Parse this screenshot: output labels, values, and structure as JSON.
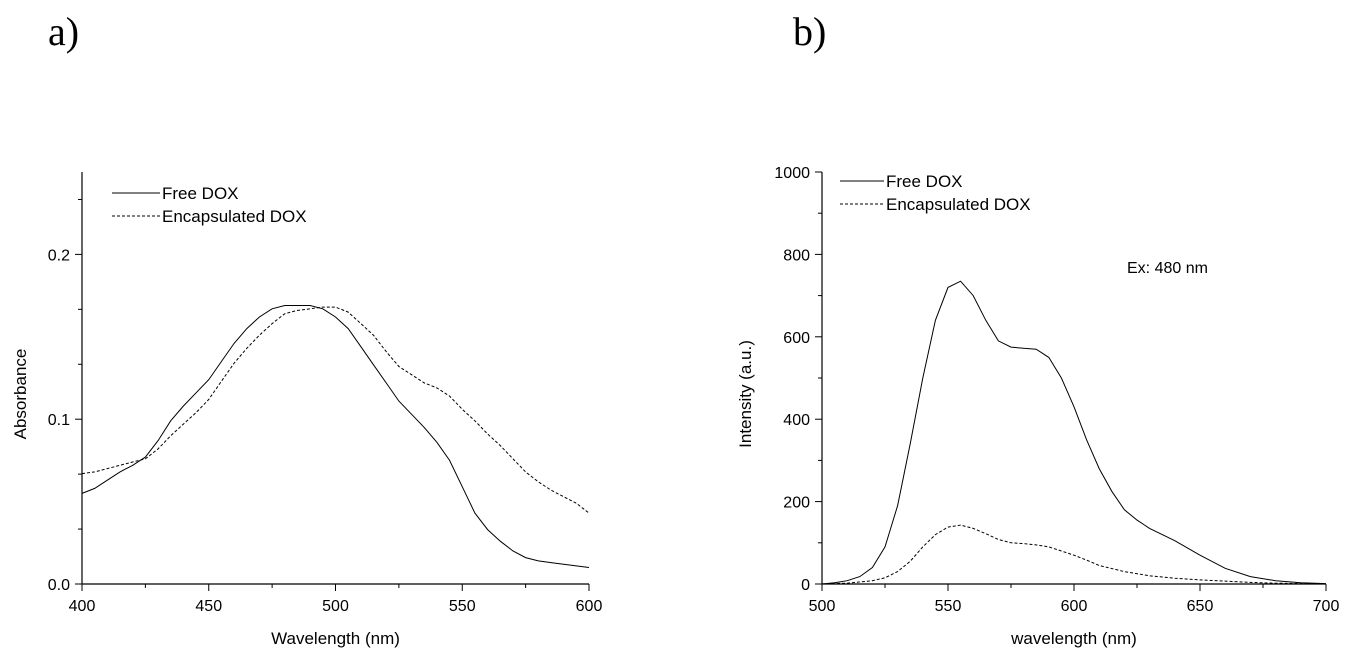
{
  "panels": {
    "a_label": "a)",
    "b_label": "b)"
  },
  "chart_data": [
    {
      "type": "line",
      "panel": "a)",
      "xlabel": "Wavelength (nm)",
      "ylabel": "Absorbance",
      "xlim": [
        400,
        600
      ],
      "ylim": [
        0.0,
        0.25
      ],
      "xticks": [
        400,
        450,
        500,
        550,
        600
      ],
      "xtick_labels": [
        "400",
        "450",
        "500",
        "550",
        "600"
      ],
      "yticks": [
        0.0,
        0.1,
        0.2
      ],
      "ytick_labels": [
        "0.0",
        "0.1",
        "0.2"
      ],
      "grid": false,
      "legend": "top-left",
      "series": [
        {
          "name": "Free DOX",
          "style": "solid",
          "x": [
            400,
            405,
            410,
            415,
            420,
            425,
            430,
            435,
            440,
            445,
            450,
            455,
            460,
            465,
            470,
            475,
            480,
            485,
            490,
            495,
            500,
            505,
            510,
            515,
            520,
            525,
            530,
            535,
            540,
            545,
            550,
            555,
            560,
            565,
            570,
            575,
            580,
            585,
            590,
            595,
            600
          ],
          "y": [
            0.055,
            0.058,
            0.063,
            0.068,
            0.072,
            0.077,
            0.087,
            0.099,
            0.108,
            0.116,
            0.124,
            0.135,
            0.146,
            0.155,
            0.162,
            0.167,
            0.169,
            0.169,
            0.169,
            0.167,
            0.162,
            0.155,
            0.144,
            0.133,
            0.122,
            0.111,
            0.103,
            0.095,
            0.086,
            0.075,
            0.059,
            0.043,
            0.033,
            0.026,
            0.02,
            0.016,
            0.014,
            0.013,
            0.012,
            0.011,
            0.01
          ]
        },
        {
          "name": "Encapsulated DOX",
          "style": "dashed",
          "x": [
            400,
            405,
            410,
            415,
            420,
            425,
            430,
            435,
            440,
            445,
            450,
            455,
            460,
            465,
            470,
            475,
            480,
            485,
            490,
            495,
            500,
            505,
            510,
            515,
            520,
            525,
            530,
            535,
            540,
            545,
            550,
            555,
            560,
            565,
            570,
            575,
            580,
            585,
            590,
            595,
            600
          ],
          "y": [
            0.067,
            0.068,
            0.07,
            0.072,
            0.074,
            0.076,
            0.082,
            0.09,
            0.097,
            0.104,
            0.112,
            0.123,
            0.134,
            0.143,
            0.151,
            0.158,
            0.164,
            0.166,
            0.167,
            0.168,
            0.168,
            0.165,
            0.158,
            0.151,
            0.141,
            0.132,
            0.127,
            0.122,
            0.119,
            0.114,
            0.106,
            0.099,
            0.091,
            0.084,
            0.076,
            0.068,
            0.062,
            0.057,
            0.053,
            0.049,
            0.043
          ]
        }
      ]
    },
    {
      "type": "line",
      "panel": "b)",
      "xlabel": "wavelength (nm)",
      "ylabel": "Intensity (a.u.)",
      "xlim": [
        500,
        700
      ],
      "ylim": [
        0,
        1000
      ],
      "xticks": [
        500,
        550,
        600,
        650,
        700
      ],
      "xtick_labels": [
        "500",
        "550",
        "600",
        "650",
        "700"
      ],
      "yticks": [
        0,
        200,
        400,
        600,
        800,
        1000
      ],
      "ytick_labels": [
        "0",
        "200",
        "400",
        "600",
        "800",
        "1000"
      ],
      "grid": false,
      "legend": "top-left",
      "annotation": "Ex: 480 nm",
      "series": [
        {
          "name": "Free DOX",
          "style": "solid",
          "x": [
            500,
            505,
            510,
            515,
            520,
            525,
            530,
            535,
            540,
            545,
            550,
            555,
            560,
            565,
            570,
            575,
            580,
            585,
            590,
            595,
            600,
            605,
            610,
            615,
            620,
            625,
            630,
            640,
            650,
            660,
            670,
            680,
            690,
            700
          ],
          "y": [
            0,
            3,
            8,
            18,
            40,
            90,
            190,
            340,
            500,
            640,
            720,
            735,
            700,
            640,
            590,
            575,
            572,
            570,
            550,
            500,
            430,
            350,
            280,
            225,
            180,
            155,
            135,
            105,
            70,
            38,
            18,
            8,
            3,
            1
          ]
        },
        {
          "name": "Encapsulated DOX",
          "style": "dashed",
          "x": [
            500,
            510,
            520,
            525,
            530,
            535,
            540,
            545,
            550,
            555,
            560,
            565,
            570,
            575,
            580,
            585,
            590,
            595,
            600,
            605,
            610,
            620,
            630,
            640,
            650,
            660,
            670,
            680,
            690,
            700
          ],
          "y": [
            0,
            2,
            8,
            15,
            30,
            55,
            90,
            120,
            138,
            143,
            135,
            122,
            108,
            100,
            98,
            95,
            90,
            80,
            70,
            58,
            45,
            30,
            20,
            14,
            10,
            7,
            4,
            2,
            1,
            0
          ]
        }
      ]
    }
  ]
}
